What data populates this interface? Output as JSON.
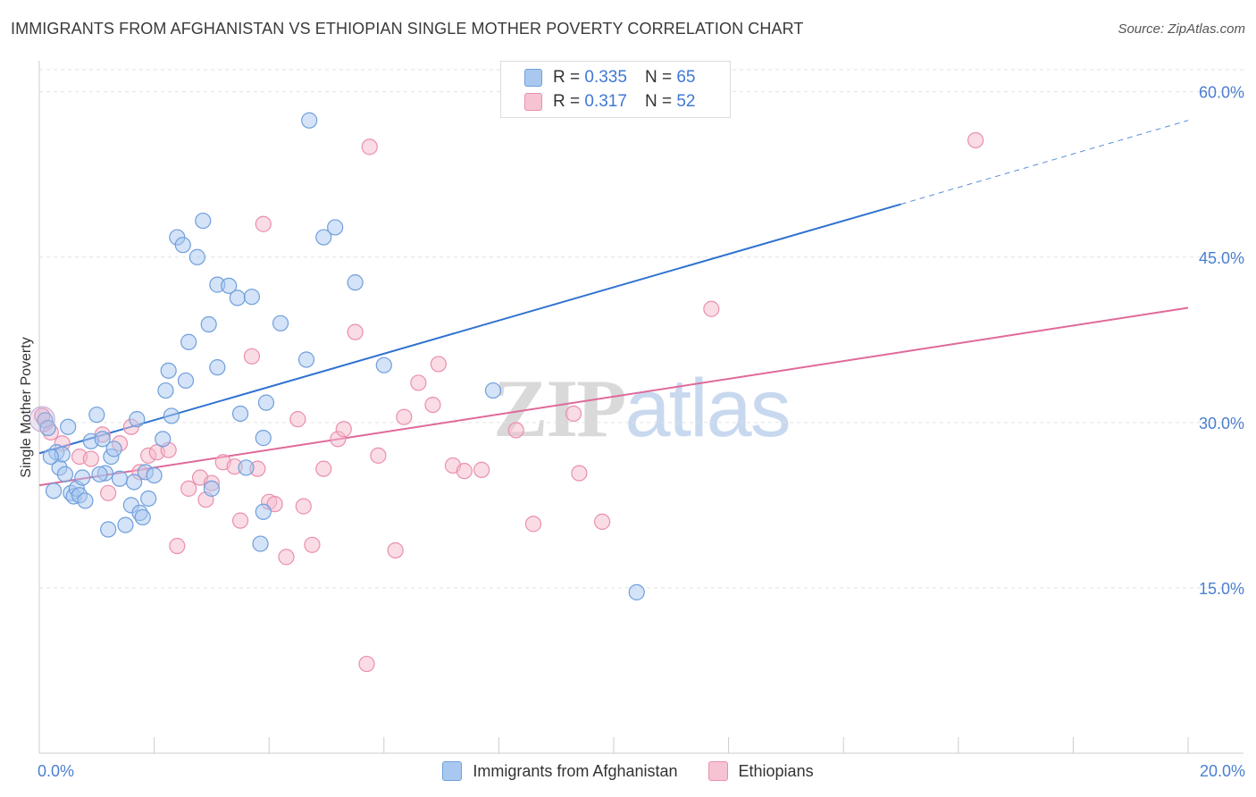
{
  "title": "IMMIGRANTS FROM AFGHANISTAN VS ETHIOPIAN SINGLE MOTHER POVERTY CORRELATION CHART",
  "source": "Source: ZipAtlas.com",
  "watermark": {
    "zip": "ZIP",
    "atlas": "atlas"
  },
  "colors": {
    "blue_fill": "#a9c8f0",
    "blue_stroke": "#6f9fdc",
    "blue_line": "#2f72d0",
    "pink_fill": "#f6b9cc",
    "pink_stroke": "#ea8fad",
    "pink_line": "#e0699a",
    "tick_text": "#4a7fd0",
    "grid": "#e2e2e2"
  },
  "legend": {
    "rows": [
      {
        "r_label": "R = ",
        "r_value": "0.335",
        "n_label": "N = ",
        "n_value": "65"
      },
      {
        "r_label": "R = ",
        "r_value": "0.317",
        "n_label": "N = ",
        "n_value": "52"
      }
    ]
  },
  "chart_data": {
    "type": "scatter",
    "title": "IMMIGRANTS FROM AFGHANISTAN VS ETHIOPIAN SINGLE MOTHER POVERTY CORRELATION CHART",
    "xlabel": "",
    "ylabel": "Single Mother Poverty",
    "xlim": [
      0,
      20
    ],
    "ylim": [
      0,
      62
    ],
    "x_tick_labels": [
      "0.0%",
      "20.0%"
    ],
    "y_ticks": [
      15,
      30,
      45,
      60
    ],
    "y_tick_labels": [
      "15.0%",
      "30.0%",
      "45.0%",
      "60.0%"
    ],
    "grid": true,
    "legend_position": "top-center",
    "series": [
      {
        "name": "Immigrants from Afghanistan",
        "color": "blue",
        "trend": {
          "x0": 0,
          "y0": 27.2,
          "x1": 15,
          "y1": 49.8,
          "dash_to_x": 20,
          "dash_to_y": 57.4
        },
        "points": [
          [
            0.1,
            30.2
          ],
          [
            0.15,
            29.5
          ],
          [
            0.25,
            23.8
          ],
          [
            0.3,
            27.3
          ],
          [
            0.35,
            25.9
          ],
          [
            0.4,
            27.1
          ],
          [
            0.45,
            25.3
          ],
          [
            0.5,
            29.6
          ],
          [
            0.55,
            23.6
          ],
          [
            0.6,
            23.3
          ],
          [
            0.65,
            24.0
          ],
          [
            0.7,
            23.4
          ],
          [
            0.75,
            25.0
          ],
          [
            0.8,
            22.9
          ],
          [
            0.9,
            28.3
          ],
          [
            1.0,
            30.7
          ],
          [
            1.1,
            28.5
          ],
          [
            1.15,
            25.4
          ],
          [
            1.2,
            20.3
          ],
          [
            1.25,
            26.9
          ],
          [
            1.3,
            27.6
          ],
          [
            1.4,
            24.9
          ],
          [
            1.5,
            20.7
          ],
          [
            1.6,
            22.5
          ],
          [
            1.65,
            24.6
          ],
          [
            1.7,
            30.3
          ],
          [
            1.75,
            21.8
          ],
          [
            1.8,
            21.4
          ],
          [
            1.85,
            25.5
          ],
          [
            1.9,
            23.1
          ],
          [
            2.0,
            25.2
          ],
          [
            2.15,
            28.5
          ],
          [
            2.2,
            32.9
          ],
          [
            2.25,
            34.7
          ],
          [
            2.3,
            30.6
          ],
          [
            2.4,
            46.8
          ],
          [
            2.5,
            46.1
          ],
          [
            2.55,
            33.8
          ],
          [
            2.6,
            37.3
          ],
          [
            2.75,
            45.0
          ],
          [
            2.85,
            48.3
          ],
          [
            2.95,
            38.9
          ],
          [
            3.0,
            24.0
          ],
          [
            3.1,
            35.0
          ],
          [
            3.1,
            42.5
          ],
          [
            3.3,
            42.4
          ],
          [
            3.45,
            41.3
          ],
          [
            3.5,
            30.8
          ],
          [
            3.6,
            25.9
          ],
          [
            3.7,
            41.4
          ],
          [
            3.85,
            19.0
          ],
          [
            3.9,
            21.9
          ],
          [
            3.9,
            28.6
          ],
          [
            3.95,
            31.8
          ],
          [
            4.2,
            39.0
          ],
          [
            4.65,
            35.7
          ],
          [
            4.7,
            57.4
          ],
          [
            4.95,
            46.8
          ],
          [
            5.15,
            47.7
          ],
          [
            5.5,
            42.7
          ],
          [
            6.0,
            35.2
          ],
          [
            7.9,
            32.9
          ],
          [
            10.4,
            14.6
          ],
          [
            0.2,
            26.9
          ],
          [
            1.05,
            25.3
          ]
        ]
      },
      {
        "name": "Ethiopians",
        "color": "pink",
        "trend": {
          "x0": 0,
          "y0": 24.3,
          "x1": 20,
          "y1": 40.4
        },
        "points": [
          [
            0.05,
            30.6
          ],
          [
            0.2,
            29.1
          ],
          [
            0.4,
            28.1
          ],
          [
            0.7,
            26.9
          ],
          [
            0.9,
            26.7
          ],
          [
            1.1,
            28.9
          ],
          [
            1.2,
            23.6
          ],
          [
            1.4,
            28.1
          ],
          [
            1.6,
            29.6
          ],
          [
            1.75,
            25.5
          ],
          [
            1.9,
            27.0
          ],
          [
            2.05,
            27.3
          ],
          [
            2.25,
            27.5
          ],
          [
            2.4,
            18.8
          ],
          [
            2.6,
            24.0
          ],
          [
            2.8,
            25.0
          ],
          [
            2.9,
            23.0
          ],
          [
            3.0,
            24.5
          ],
          [
            3.2,
            26.4
          ],
          [
            3.4,
            26.0
          ],
          [
            3.5,
            21.1
          ],
          [
            3.7,
            36.0
          ],
          [
            3.8,
            25.8
          ],
          [
            3.9,
            48.0
          ],
          [
            4.0,
            22.8
          ],
          [
            4.1,
            22.6
          ],
          [
            4.3,
            17.8
          ],
          [
            4.5,
            30.3
          ],
          [
            4.6,
            22.4
          ],
          [
            4.75,
            18.9
          ],
          [
            4.95,
            25.8
          ],
          [
            5.2,
            28.5
          ],
          [
            5.3,
            29.4
          ],
          [
            5.5,
            38.2
          ],
          [
            5.7,
            8.1
          ],
          [
            5.75,
            55.0
          ],
          [
            5.9,
            27.0
          ],
          [
            6.2,
            18.4
          ],
          [
            6.35,
            30.5
          ],
          [
            6.6,
            33.6
          ],
          [
            6.85,
            31.6
          ],
          [
            6.95,
            35.3
          ],
          [
            7.2,
            26.1
          ],
          [
            7.4,
            25.6
          ],
          [
            7.7,
            25.7
          ],
          [
            8.3,
            29.3
          ],
          [
            8.6,
            20.8
          ],
          [
            9.3,
            30.8
          ],
          [
            9.4,
            25.4
          ],
          [
            9.8,
            21.0
          ],
          [
            11.7,
            40.3
          ],
          [
            16.3,
            55.6
          ]
        ]
      }
    ]
  },
  "bottom_legend": [
    {
      "label": "Immigrants from Afghanistan"
    },
    {
      "label": "Ethiopians"
    }
  ]
}
